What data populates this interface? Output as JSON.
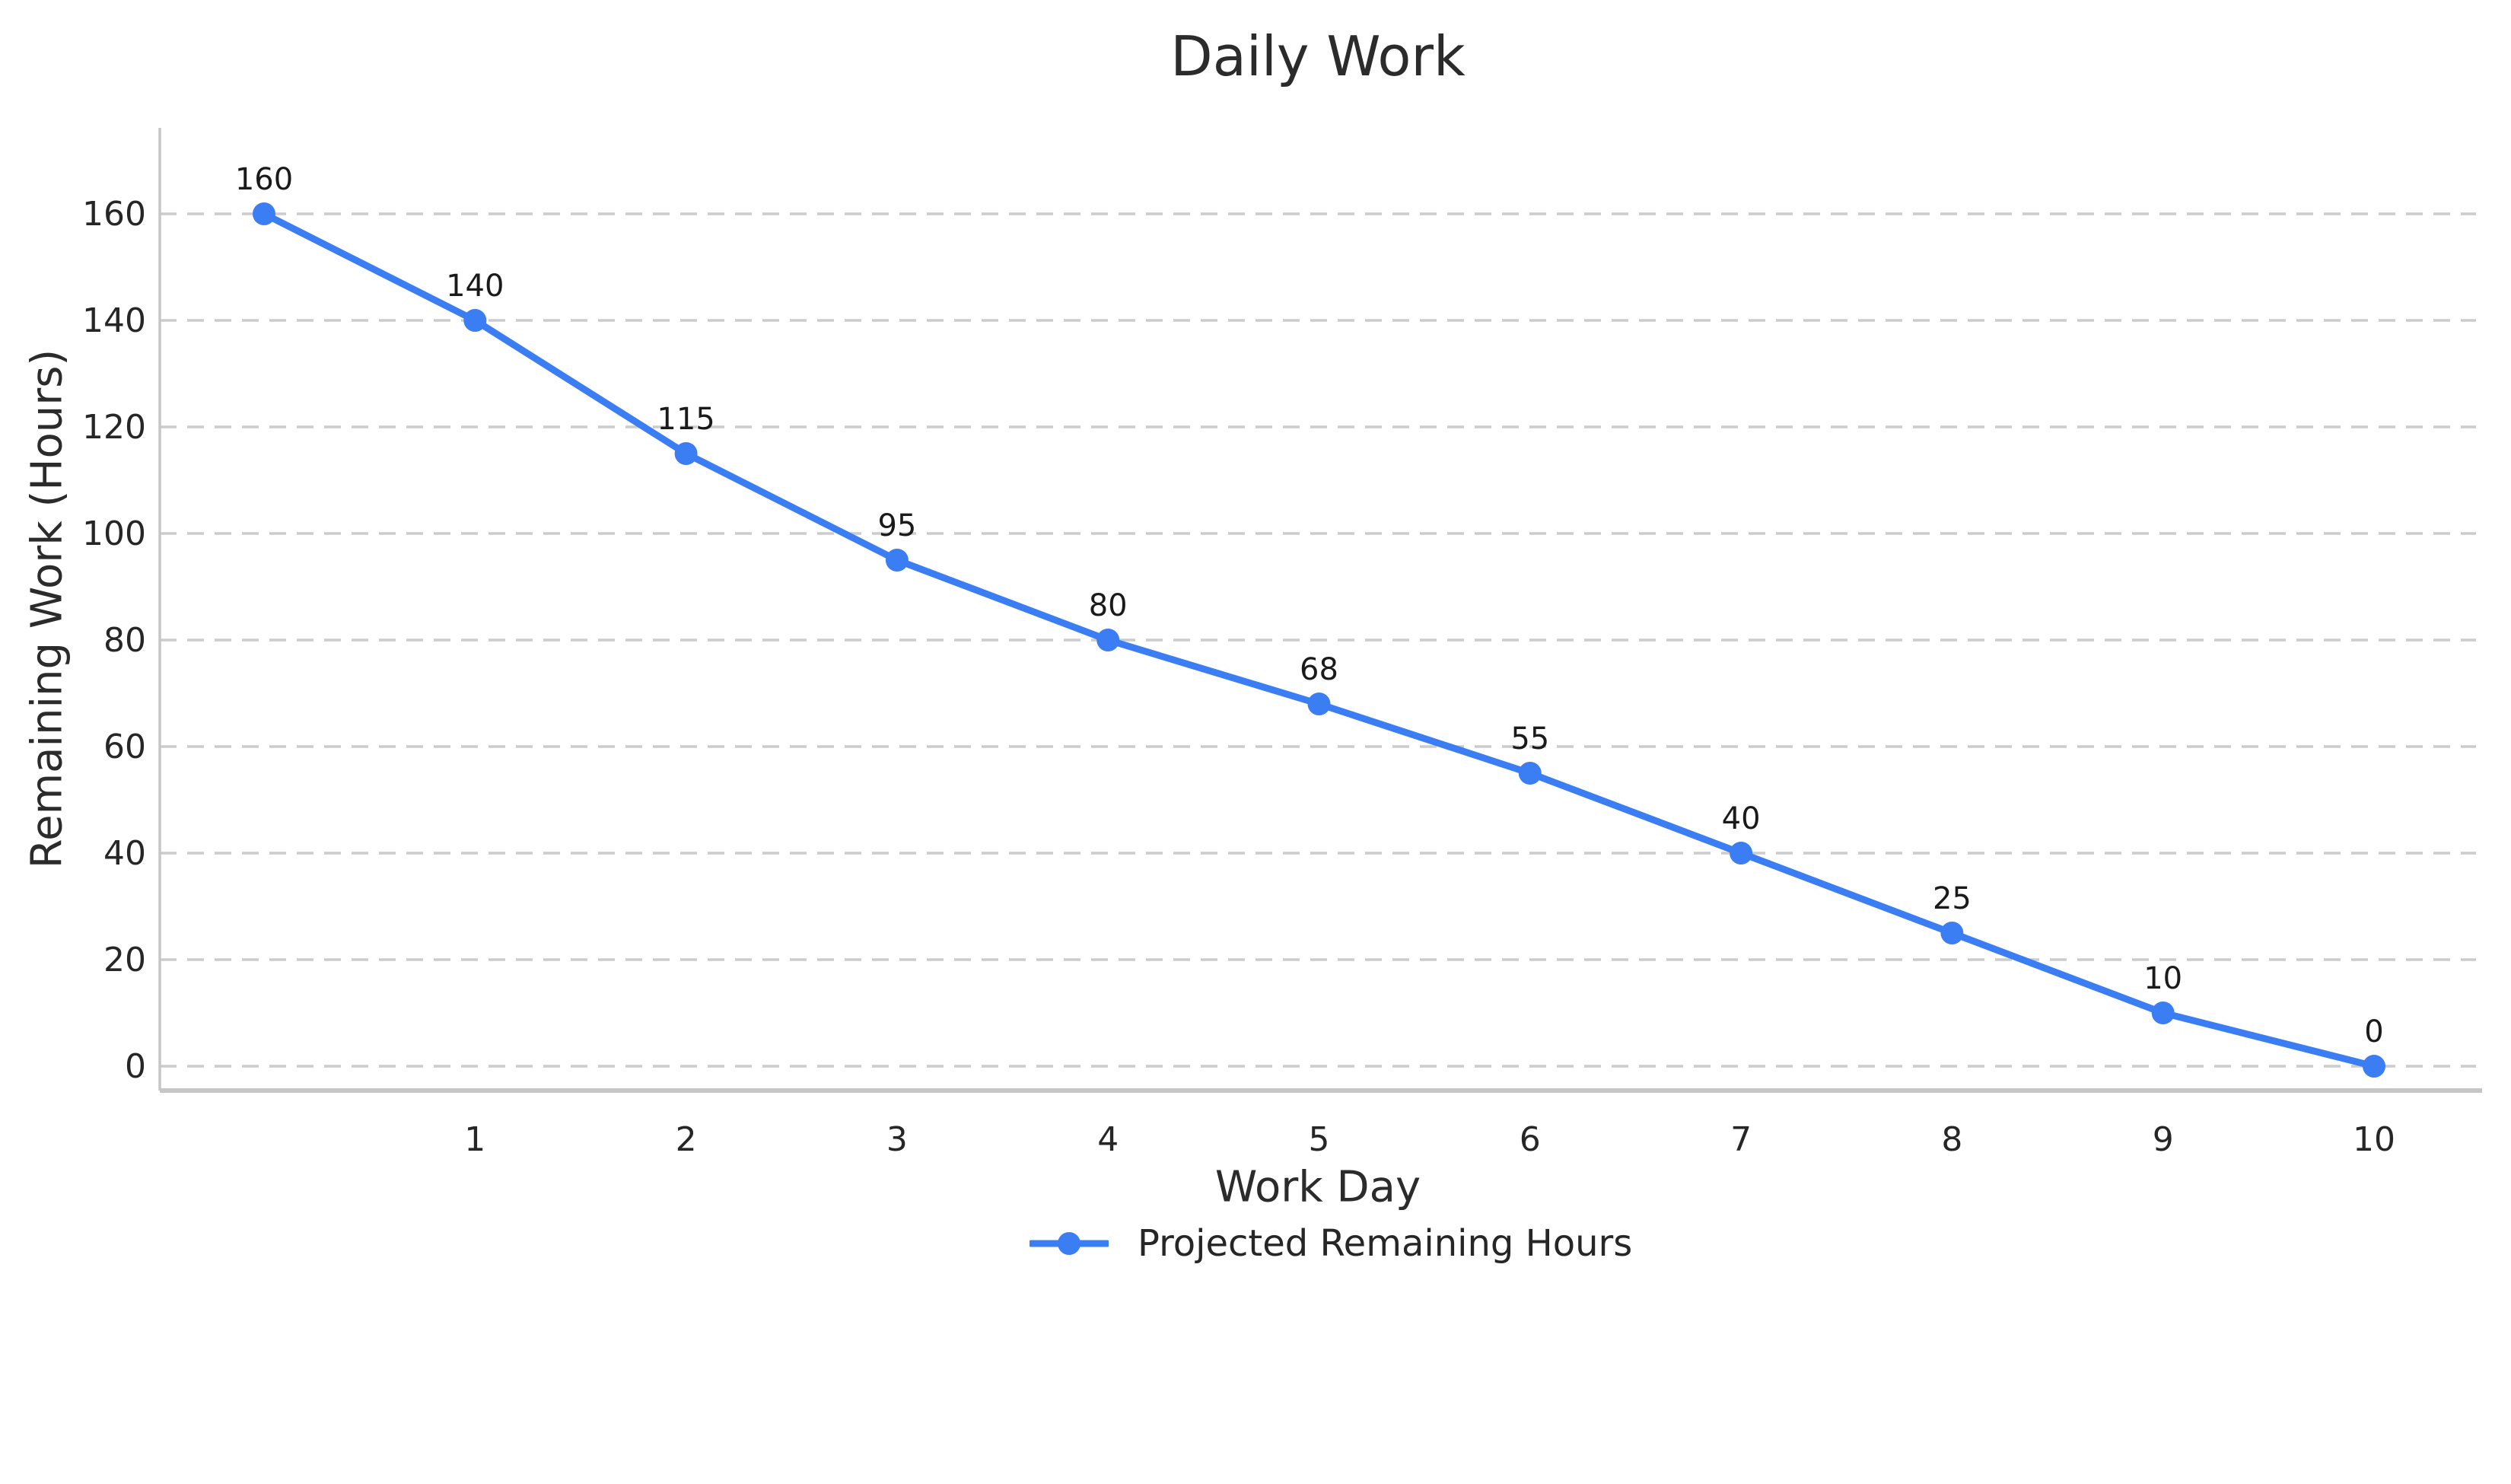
{
  "page": {
    "background": "#ffffff"
  },
  "chart_data": {
    "type": "line",
    "title": "Daily Work",
    "xlabel": "Work Day",
    "ylabel": "Remaining Work (Hours)",
    "x": [
      0,
      1,
      2,
      3,
      4,
      5,
      6,
      7,
      8,
      9,
      10
    ],
    "series": [
      {
        "name": "Projected Remaining Hours",
        "values": [
          160,
          140,
          115,
          95,
          80,
          68,
          55,
          40,
          25,
          10,
          0
        ],
        "color": "#3b7df2",
        "marker": "circle"
      }
    ],
    "point_labels": [
      "160",
      "140",
      "115",
      "95",
      "80",
      "68",
      "55",
      "40",
      "25",
      "10",
      "0"
    ],
    "xticks": [
      "1",
      "2",
      "3",
      "4",
      "5",
      "6",
      "7",
      "8",
      "9",
      "10"
    ],
    "yticks": [
      0,
      20,
      40,
      60,
      80,
      100,
      120,
      140,
      160
    ],
    "xlim": [
      -0.5,
      10.5
    ],
    "ylim": [
      -5,
      176
    ],
    "grid": {
      "axis": "y",
      "style": "dashed",
      "color": "#cccccc"
    },
    "legend": {
      "position": "bottom-center"
    },
    "axis_color": "#c6c6c6",
    "text_color": "#262626",
    "label_color": "#1a1a1a"
  }
}
